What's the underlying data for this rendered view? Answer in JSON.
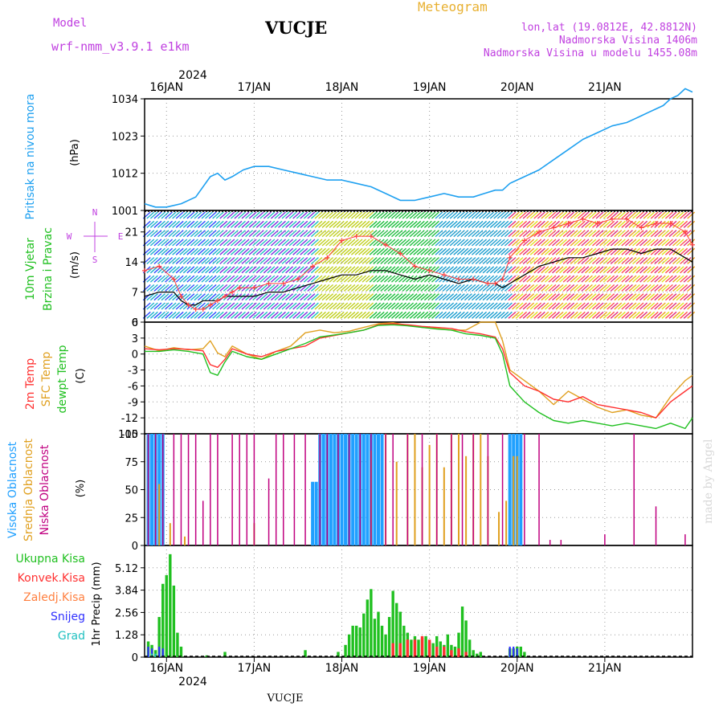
{
  "header": {
    "model_label": "Model",
    "model_name": "wrf-nmm_v3.9.1 e1km",
    "station": "VUCJE",
    "meteogram_label": "Meteogram",
    "lonlat": "lon,lat (19.0812E, 42.8812N)",
    "elevation": "Nadmorska Visina 1406m",
    "model_elevation": "Nadmorska Visina u modelu 1455.08m",
    "watermark": "made by Angel",
    "footer": "VUCJE"
  },
  "time_axis": {
    "year": "2024",
    "days": [
      "16JAN",
      "17JAN",
      "18JAN",
      "19JAN",
      "20JAN",
      "21JAN"
    ],
    "day_offsets_h": [
      6,
      30,
      54,
      78,
      102,
      126
    ],
    "range_h": [
      0,
      150
    ]
  },
  "colors": {
    "pressure": "#1ea0f0",
    "temp2m": "#ff3030",
    "sfc_temp": "#e0a020",
    "dewpt": "#20c020",
    "high_cloud": "#20a0ff",
    "mid_cloud": "#e0a020",
    "low_cloud": "#c00080",
    "total_precip": "#20c020",
    "conv_precip": "#ff3030",
    "frozen_precip": "#ff8040",
    "snow": "#3030ff",
    "graupel": "#20c0c0",
    "label_purple": "#c040e0",
    "label_orange": "#e8b030"
  },
  "panels": {
    "pressure": {
      "title": "Pritisak na nivou mora",
      "unit": "(hPa)"
    },
    "wind": {
      "title": "10m Vjetar",
      "title2": "Brzina i Pravac",
      "unit": "(m/s)",
      "compass": [
        "N",
        "E",
        "S",
        "W"
      ]
    },
    "temp": {
      "label1": "2m Temp",
      "label2": "SFC Temp",
      "label3": "dewpt Temp",
      "unit": "(C)"
    },
    "cloud": {
      "label1": "Visoka Oblacnost",
      "label2": "Srednja Oblacnost",
      "label3": "Niska Oblacnost",
      "unit": "(%)"
    },
    "precip": {
      "labels": [
        "Ukupna Kisa",
        "Konvek.Kisa",
        "Zaledj.Kisa",
        "Snijeg",
        "Grad"
      ],
      "unit": "1hr Precip (mm)"
    }
  },
  "chart_data": [
    {
      "type": "line",
      "title": "Pritisak na nivou mora",
      "ylabel": "(hPa)",
      "ylim": [
        1001,
        1034
      ],
      "yticks": [
        1001,
        1012,
        1023,
        1034
      ],
      "series": [
        {
          "name": "Pritisak na nivou mora",
          "x": [
            0,
            3,
            6,
            10,
            14,
            18,
            20,
            22,
            24,
            27,
            30,
            34,
            38,
            42,
            46,
            50,
            54,
            58,
            62,
            66,
            70,
            74,
            78,
            82,
            86,
            90,
            93,
            96,
            98,
            100,
            104,
            108,
            112,
            116,
            120,
            124,
            128,
            132,
            134,
            136,
            138,
            140,
            142,
            144,
            146,
            148,
            150
          ],
          "y": [
            1003,
            1002,
            1002,
            1003,
            1005,
            1011,
            1012,
            1010,
            1011,
            1013,
            1014,
            1014,
            1013,
            1012,
            1011,
            1010,
            1010,
            1009,
            1008,
            1006,
            1004,
            1004,
            1005,
            1006,
            1005,
            1005,
            1006,
            1007,
            1007,
            1009,
            1011,
            1013,
            1016,
            1019,
            1022,
            1024,
            1026,
            1027,
            1028,
            1029,
            1030,
            1031,
            1032,
            1034,
            1035,
            1037,
            1036
          ]
        }
      ]
    },
    {
      "type": "line",
      "title": "10m Vjetar Brzina i Pravac",
      "ylabel": "(m/s)",
      "ylim": [
        0,
        26
      ],
      "yticks": [
        0,
        7,
        14,
        21
      ],
      "series": [
        {
          "name": "wind_speed",
          "x": [
            0,
            4,
            8,
            10,
            12,
            14,
            16,
            18,
            20,
            22,
            24,
            26,
            30,
            34,
            38,
            42,
            46,
            50,
            54,
            58,
            62,
            66,
            70,
            74,
            78,
            82,
            86,
            90,
            94,
            96,
            98,
            100,
            104,
            108,
            112,
            116,
            120,
            124,
            128,
            132,
            136,
            140,
            144,
            148,
            150
          ],
          "y": [
            6,
            7,
            7,
            5,
            4,
            4,
            5,
            5,
            5,
            6,
            6,
            6,
            6,
            7,
            7,
            8,
            9,
            10,
            11,
            11,
            12,
            12,
            11,
            10,
            11,
            10,
            9,
            10,
            9,
            9,
            8,
            9,
            11,
            13,
            14,
            15,
            15,
            16,
            17,
            17,
            16,
            17,
            17,
            15,
            14
          ]
        },
        {
          "name": "wind_gust",
          "x": [
            0,
            4,
            8,
            10,
            12,
            14,
            16,
            18,
            20,
            22,
            24,
            26,
            30,
            34,
            38,
            42,
            46,
            50,
            54,
            58,
            62,
            66,
            70,
            74,
            78,
            82,
            86,
            90,
            94,
            96,
            98,
            100,
            104,
            108,
            112,
            116,
            120,
            124,
            128,
            132,
            136,
            140,
            144,
            148,
            150
          ],
          "y": [
            12,
            13,
            10,
            6,
            4,
            3,
            3,
            4,
            5,
            6,
            7,
            8,
            8,
            9,
            9,
            10,
            13,
            15,
            19,
            20,
            20,
            18,
            16,
            13,
            12,
            11,
            10,
            10,
            9,
            9,
            10,
            15,
            19,
            21,
            22,
            23,
            24,
            23,
            24,
            24,
            22,
            23,
            23,
            21,
            18
          ]
        }
      ]
    },
    {
      "type": "line",
      "title": "2m Temp / SFC Temp / dewpt Temp",
      "ylabel": "(C)",
      "ylim": [
        -15,
        6
      ],
      "yticks": [
        -15,
        -12,
        -9,
        -6,
        -3,
        0,
        3,
        6
      ],
      "series": [
        {
          "name": "2m Temp",
          "x": [
            0,
            4,
            8,
            12,
            16,
            18,
            20,
            22,
            24,
            28,
            32,
            36,
            40,
            44,
            48,
            52,
            56,
            60,
            64,
            68,
            72,
            76,
            80,
            84,
            88,
            92,
            96,
            98,
            100,
            104,
            108,
            112,
            116,
            120,
            124,
            128,
            132,
            136,
            140,
            144,
            148,
            150
          ],
          "y": [
            1,
            0.8,
            1,
            0.9,
            0.6,
            -2,
            -2.5,
            -1,
            1,
            0,
            -0.5,
            0.5,
            1,
            1.5,
            3,
            3.5,
            4,
            4.5,
            5.5,
            5.7,
            5.5,
            5.2,
            5,
            4.8,
            4.2,
            3.8,
            3.2,
            1,
            -3.5,
            -6,
            -7,
            -8.5,
            -9,
            -8,
            -9.5,
            -10,
            -10.5,
            -11,
            -12,
            -9,
            -7,
            -6
          ]
        },
        {
          "name": "SFC Temp",
          "x": [
            0,
            4,
            8,
            12,
            16,
            18,
            20,
            22,
            24,
            28,
            32,
            36,
            40,
            44,
            48,
            52,
            56,
            60,
            64,
            68,
            72,
            76,
            80,
            84,
            88,
            92,
            94,
            96,
            98,
            100,
            104,
            108,
            112,
            116,
            120,
            124,
            128,
            132,
            136,
            140,
            144,
            148,
            150
          ],
          "y": [
            1.5,
            0.6,
            1.2,
            0.8,
            1,
            2.5,
            0.2,
            -0.5,
            1.5,
            0,
            -1,
            0.5,
            1.5,
            4,
            4.5,
            4,
            4.3,
            5,
            5.7,
            5.9,
            5.4,
            5,
            4.8,
            4.5,
            4.5,
            6,
            6,
            6,
            2.5,
            -3,
            -5,
            -7,
            -9.5,
            -7,
            -8.5,
            -10,
            -11,
            -10.5,
            -11.5,
            -12,
            -8,
            -5,
            -4
          ]
        },
        {
          "name": "dewpt Temp",
          "x": [
            0,
            4,
            8,
            12,
            16,
            18,
            20,
            22,
            24,
            28,
            32,
            36,
            40,
            44,
            48,
            52,
            56,
            60,
            64,
            68,
            72,
            76,
            80,
            84,
            88,
            92,
            96,
            98,
            100,
            104,
            108,
            112,
            116,
            120,
            124,
            128,
            132,
            136,
            140,
            144,
            148,
            150
          ],
          "y": [
            0.5,
            0.5,
            0.8,
            0.5,
            0,
            -3.5,
            -4,
            -1.5,
            0.5,
            -0.5,
            -1,
            0,
            1,
            2,
            3.2,
            3.6,
            4,
            4.5,
            5.4,
            5.5,
            5.3,
            5,
            4.7,
            4.5,
            3.8,
            3.5,
            3,
            0,
            -6,
            -9,
            -11,
            -12.5,
            -13,
            -12.5,
            -13,
            -13.5,
            -13,
            -13.5,
            -14,
            -13,
            -14,
            -12
          ]
        }
      ]
    },
    {
      "type": "bar",
      "title": "Visoka / Srednja / Niska Oblacnost",
      "ylabel": "(%)",
      "ylim": [
        0,
        100
      ],
      "yticks": [
        0,
        25,
        50,
        75,
        100
      ],
      "series": [
        {
          "name": "Visoka Oblacnost",
          "x": [
            1,
            2,
            3,
            4,
            5,
            46,
            47,
            48,
            49,
            50,
            51,
            52,
            53,
            54,
            55,
            56,
            57,
            58,
            59,
            60,
            61,
            62,
            63,
            64,
            65,
            100,
            101,
            102,
            103
          ],
          "values": [
            100,
            100,
            100,
            100,
            100,
            57,
            57,
            100,
            100,
            100,
            100,
            100,
            100,
            100,
            100,
            100,
            100,
            100,
            100,
            100,
            100,
            100,
            100,
            100,
            100,
            100,
            100,
            100,
            100
          ]
        },
        {
          "name": "Srednja Oblacnost",
          "x": [
            4,
            7,
            11,
            30,
            62,
            66,
            69,
            72,
            74,
            76,
            78,
            80,
            82,
            84,
            86,
            88,
            90,
            92,
            94,
            97,
            99,
            101,
            102
          ],
          "values": [
            55,
            20,
            8,
            20,
            85,
            100,
            75,
            100,
            100,
            70,
            90,
            100,
            70,
            100,
            100,
            80,
            100,
            100,
            80,
            30,
            40,
            80,
            80
          ]
        },
        {
          "name": "Niska Oblacnost",
          "x": [
            1,
            3,
            5,
            8,
            10,
            12,
            14,
            16,
            18,
            20,
            24,
            26,
            28,
            30,
            34,
            36,
            38,
            41,
            44,
            48,
            50,
            53,
            56,
            59,
            62,
            66,
            68,
            72,
            76,
            80,
            84,
            87,
            90,
            94,
            98,
            104,
            108,
            111,
            114,
            126,
            134,
            140,
            148
          ],
          "values": [
            100,
            100,
            100,
            100,
            100,
            100,
            100,
            40,
            100,
            100,
            100,
            100,
            100,
            100,
            60,
            100,
            100,
            100,
            100,
            100,
            100,
            100,
            100,
            100,
            100,
            100,
            100,
            100,
            100,
            100,
            100,
            100,
            100,
            100,
            100,
            100,
            100,
            5,
            5,
            10,
            100,
            35,
            10
          ]
        }
      ]
    },
    {
      "type": "bar",
      "title": "1hr Precip",
      "ylabel": "1hr Precip (mm)",
      "ylim": [
        0,
        6.4
      ],
      "yticks": [
        0,
        1.28,
        2.56,
        3.84,
        5.12
      ],
      "series": [
        {
          "name": "Ukupna Kisa",
          "x": [
            1,
            2,
            3,
            4,
            5,
            6,
            7,
            8,
            9,
            10,
            17,
            22,
            44,
            53,
            55,
            56,
            57,
            58,
            59,
            60,
            61,
            62,
            63,
            64,
            65,
            66,
            67,
            68,
            69,
            70,
            71,
            72,
            73,
            74,
            75,
            76,
            77,
            78,
            79,
            80,
            81,
            82,
            83,
            84,
            85,
            86,
            87,
            88,
            89,
            90,
            91,
            92,
            100,
            101,
            102,
            103,
            104
          ],
          "values": [
            0.9,
            0.7,
            0.4,
            2.3,
            4.2,
            4.7,
            5.9,
            4.1,
            1.4,
            0.6,
            0.1,
            0.3,
            0.4,
            0.3,
            0.7,
            1.3,
            1.8,
            1.8,
            1.7,
            2.5,
            3.3,
            3.9,
            2.2,
            2.6,
            1.8,
            1.3,
            2.3,
            3.8,
            3.1,
            2.6,
            1.8,
            1.4,
            1.0,
            1.2,
            1.0,
            1.1,
            1.2,
            0.9,
            0.8,
            1.2,
            0.9,
            0.7,
            1.3,
            0.7,
            0.6,
            1.4,
            2.9,
            2.1,
            1.0,
            0.4,
            0.2,
            0.3,
            0.5,
            0.5,
            0.6,
            0.6,
            0.3
          ]
        },
        {
          "name": "Konvek.Kisa",
          "x": [
            68,
            70,
            72,
            74,
            76,
            78,
            80,
            82,
            84,
            86,
            88
          ],
          "values": [
            0.8,
            0.8,
            1.0,
            1.0,
            1.2,
            1.0,
            0.6,
            0.6,
            0.4,
            0.5,
            0.3
          ]
        },
        {
          "name": "Snijeg",
          "x": [
            1,
            2,
            4,
            5,
            100,
            101,
            102
          ],
          "values": [
            0.6,
            0.5,
            0.6,
            0.5,
            0.6,
            0.6,
            0.5
          ]
        },
        {
          "name": "Grad",
          "x": [
            2,
            3
          ],
          "values": [
            0.2,
            0.2
          ]
        }
      ]
    }
  ]
}
